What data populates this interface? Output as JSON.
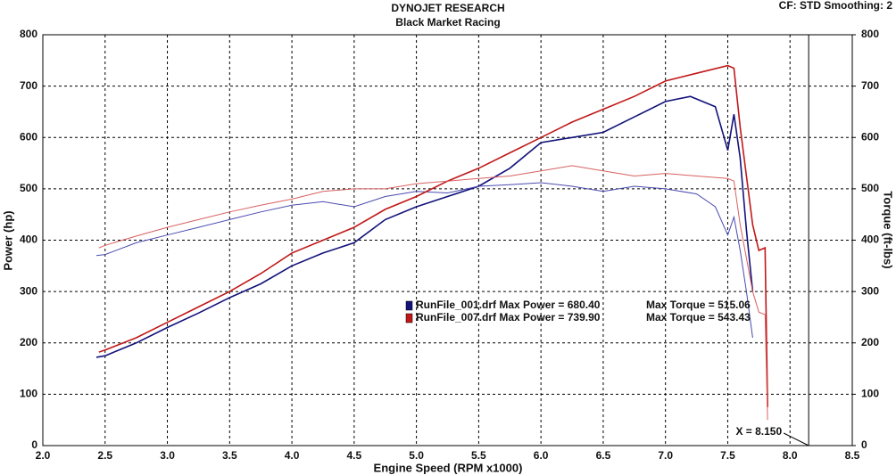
{
  "chart_data": {
    "type": "line",
    "title": "DYNOJET RESEARCH",
    "subtitle": "Black Market Racing",
    "settings_label": "CF: STD  Smoothing: 2",
    "x_label": "Engine Speed (RPM x1000)",
    "y_label": "Power (hp)",
    "y2_label": "Torque (ft-lbs)",
    "xlim": [
      2,
      8.5
    ],
    "xticks": [
      {
        "value": 2,
        "label": "2.0"
      },
      2.5,
      {
        "value": 3,
        "label": "3.0"
      },
      3.5,
      {
        "value": 4,
        "label": "4.0"
      },
      4.5,
      {
        "value": 5,
        "label": "5.0"
      },
      5.5,
      {
        "value": 6,
        "label": "6.0"
      },
      6.5,
      {
        "value": 7,
        "label": "7.0"
      },
      7.5,
      {
        "value": 8,
        "label": "8.0"
      },
      8.5
    ],
    "ylim": [
      0,
      800
    ],
    "yticks": [
      0,
      100,
      200,
      300,
      400,
      500,
      600,
      700,
      800
    ],
    "y2lim": [
      0,
      800
    ],
    "y2ticks": [
      0,
      100,
      200,
      300,
      400,
      500,
      600,
      700,
      800
    ],
    "grid": true,
    "cursor_x": 8.15,
    "cursor_label": "X = 8.150",
    "series": [
      {
        "name": "RunFile_001.drf Max Power = 680.40",
        "color": "#12127a",
        "x": [
          2.43,
          2.5,
          2.75,
          3.0,
          3.25,
          3.5,
          3.75,
          4.0,
          4.25,
          4.5,
          4.75,
          5.0,
          5.25,
          5.5,
          5.75,
          6.0,
          6.25,
          6.5,
          6.75,
          7.0,
          7.2,
          7.4,
          7.5,
          7.55,
          7.6,
          7.65,
          7.7
        ],
        "values": [
          172,
          175,
          200,
          230,
          258,
          288,
          315,
          350,
          375,
          395,
          440,
          465,
          485,
          505,
          540,
          590,
          600,
          610,
          640,
          670,
          680,
          660,
          575,
          645,
          560,
          420,
          300
        ]
      },
      {
        "name": "Max Torque = 515.06",
        "color": "#4a4ab0",
        "axis": "y2",
        "x": [
          2.43,
          2.5,
          2.75,
          3.0,
          3.25,
          3.5,
          3.75,
          4.0,
          4.25,
          4.5,
          4.75,
          5.0,
          5.25,
          5.5,
          5.75,
          6.0,
          6.25,
          6.5,
          6.75,
          7.0,
          7.25,
          7.4,
          7.5,
          7.55,
          7.6,
          7.65,
          7.7
        ],
        "values": [
          370,
          372,
          395,
          410,
          425,
          440,
          455,
          468,
          475,
          465,
          485,
          495,
          492,
          505,
          508,
          512,
          505,
          495,
          505,
          500,
          490,
          465,
          410,
          445,
          380,
          300,
          210
        ]
      },
      {
        "name": "RunFile_007.drf Max Power = 739.90",
        "color": "#c01818",
        "x": [
          2.45,
          2.5,
          2.75,
          3.0,
          3.25,
          3.5,
          3.75,
          4.0,
          4.25,
          4.5,
          4.75,
          5.0,
          5.25,
          5.5,
          5.75,
          6.0,
          6.25,
          6.5,
          6.75,
          7.0,
          7.25,
          7.5,
          7.55,
          7.6,
          7.7,
          7.75,
          7.8,
          7.82
        ],
        "values": [
          182,
          186,
          210,
          240,
          270,
          300,
          335,
          375,
          400,
          425,
          460,
          485,
          515,
          540,
          570,
          600,
          630,
          655,
          680,
          710,
          725,
          740,
          735,
          620,
          430,
          380,
          385,
          75
        ]
      },
      {
        "name": "Max Torque = 543.43",
        "color": "#d86060",
        "axis": "y2",
        "x": [
          2.45,
          2.5,
          2.75,
          3.0,
          3.25,
          3.5,
          3.75,
          4.0,
          4.25,
          4.5,
          4.75,
          5.0,
          5.25,
          5.5,
          5.75,
          6.0,
          6.25,
          6.5,
          6.75,
          7.0,
          7.25,
          7.5,
          7.55,
          7.6,
          7.7,
          7.75,
          7.8,
          7.82
        ],
        "values": [
          385,
          390,
          408,
          425,
          440,
          455,
          468,
          480,
          495,
          500,
          500,
          510,
          515,
          520,
          525,
          535,
          545,
          535,
          525,
          530,
          525,
          520,
          515,
          430,
          300,
          260,
          255,
          50
        ]
      }
    ]
  }
}
